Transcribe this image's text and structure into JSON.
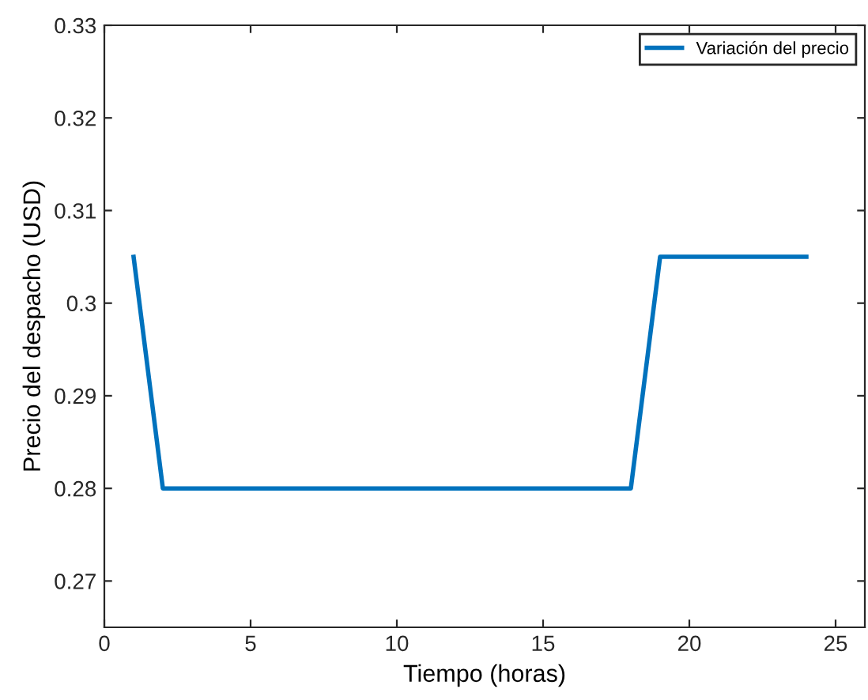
{
  "chart_data": {
    "type": "line",
    "xlabel": "Tiempo (horas)",
    "ylabel": "Precio del despacho (USD)",
    "series": [
      {
        "name": "Variación del precio",
        "color": "#0072bd",
        "x": [
          1,
          2,
          18,
          19,
          24
        ],
        "values": [
          0.305,
          0.28,
          0.28,
          0.305,
          0.305
        ]
      }
    ],
    "xlim": [
      0,
      26
    ],
    "xticks": [
      0,
      5,
      10,
      15,
      20,
      25
    ],
    "ylim": [
      0.265,
      0.33
    ],
    "yticks": [
      0.27,
      0.28,
      0.29,
      0.3,
      0.31,
      0.32,
      0.33
    ],
    "legend": "top right",
    "grid": false,
    "marker": "none",
    "line_style": "solid"
  }
}
